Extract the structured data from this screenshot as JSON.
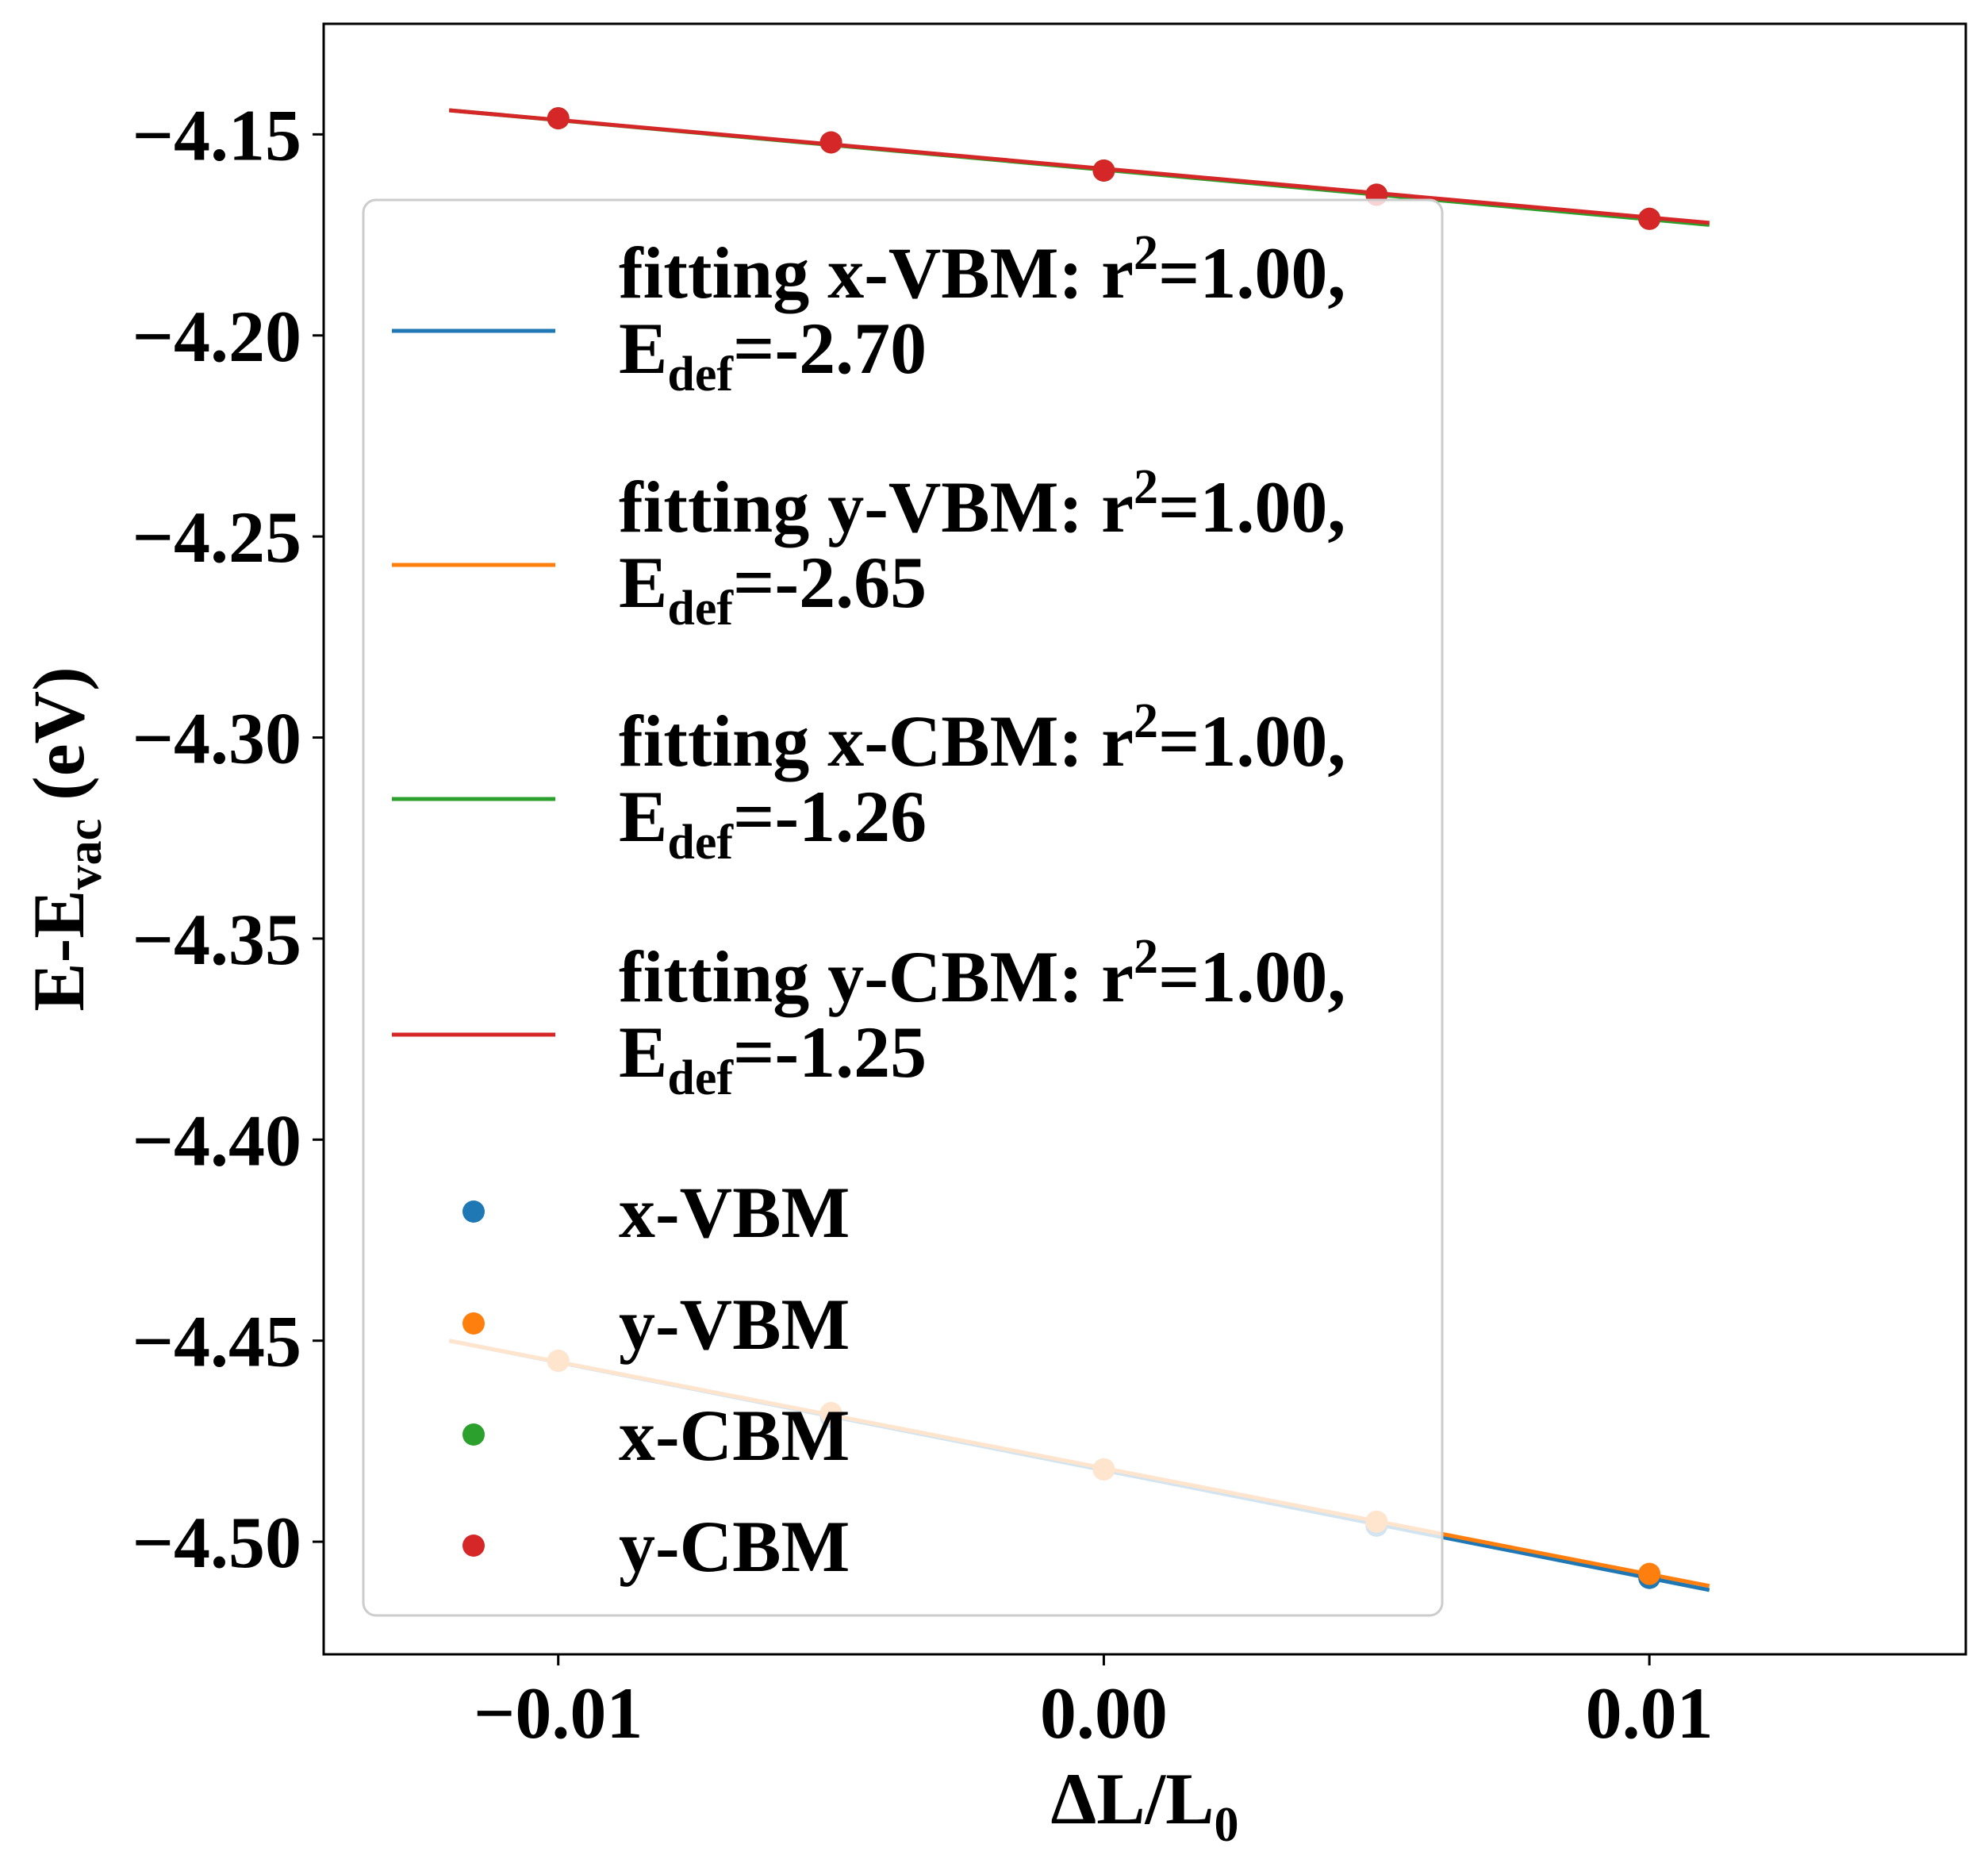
{
  "chart_data": {
    "type": "scatter",
    "xlabel": {
      "base": "ΔL/L",
      "sub": "0"
    },
    "ylabel": {
      "base": "E-E",
      "sub": "vac",
      "tail": " (eV)"
    },
    "xlim": [
      -0.0143,
      0.0158
    ],
    "ylim": [
      -4.528,
      -4.1225
    ],
    "xticks": [
      -0.01,
      0.0,
      0.01
    ],
    "xtick_labels": [
      "−0.01",
      "0.00",
      "0.01"
    ],
    "yticks": [
      -4.15,
      -4.2,
      -4.25,
      -4.3,
      -4.35,
      -4.4,
      -4.45,
      -4.5
    ],
    "ytick_labels": [
      "−4.15",
      "−4.20",
      "−4.25",
      "−4.30",
      "−4.35",
      "−4.40",
      "−4.45",
      "−4.50"
    ],
    "x": [
      -0.01,
      -0.005,
      0.0,
      0.005,
      0.01
    ],
    "series": [
      {
        "name": "x-VBM",
        "color": "#1f77b4",
        "values": [
          -4.455,
          -4.469,
          -4.482,
          -4.496,
          -4.509
        ]
      },
      {
        "name": "y-VBM",
        "color": "#ff7f0e",
        "values": [
          -4.455,
          -4.468,
          -4.482,
          -4.495,
          -4.508
        ]
      },
      {
        "name": "x-CBM",
        "color": "#2ca02c",
        "values": [
          -4.146,
          -4.152,
          -4.159,
          -4.165,
          -4.171
        ]
      },
      {
        "name": "y-CBM",
        "color": "#d62728",
        "values": [
          -4.146,
          -4.152,
          -4.159,
          -4.165,
          -4.171
        ]
      }
    ],
    "fits": [
      {
        "series": "x-VBM",
        "color": "#1f77b4",
        "x_range": [
          -0.012,
          0.0111
        ],
        "y_range": [
          -4.45,
          -4.512
        ],
        "label_main": "fitting x-VBM: r",
        "sup": "2",
        "label_tail": "=1.00,",
        "line2_base": "E",
        "line2_sub": "def",
        "line2_tail": "=-2.70"
      },
      {
        "series": "y-VBM",
        "color": "#ff7f0e",
        "values_note": "",
        "x_range": [
          -0.012,
          0.0111
        ],
        "y_range": [
          -4.45,
          -4.511
        ],
        "label_main": "fitting y-VBM: r",
        "sup": "2",
        "label_tail": "=1.00,",
        "line2_base": "E",
        "line2_sub": "def",
        "line2_tail": "=-2.65"
      },
      {
        "series": "x-CBM",
        "color": "#2ca02c",
        "x_range": [
          -0.012,
          0.0111
        ],
        "y_range": [
          -4.144,
          -4.1725
        ],
        "label_main": "fitting x-CBM: r",
        "sup": "2",
        "label_tail": "=1.00,",
        "line2_base": "E",
        "line2_sub": "def",
        "line2_tail": "=-1.26"
      },
      {
        "series": "y-CBM",
        "color": "#d62728",
        "x_range": [
          -0.012,
          0.0111
        ],
        "y_range": [
          -4.144,
          -4.172
        ],
        "label_main": "fitting y-CBM: r",
        "sup": "2",
        "label_tail": "=1.00,",
        "line2_base": "E",
        "line2_sub": "def",
        "line2_tail": "=-1.25"
      }
    ],
    "legend_placement": "center-left",
    "grid": false
  }
}
